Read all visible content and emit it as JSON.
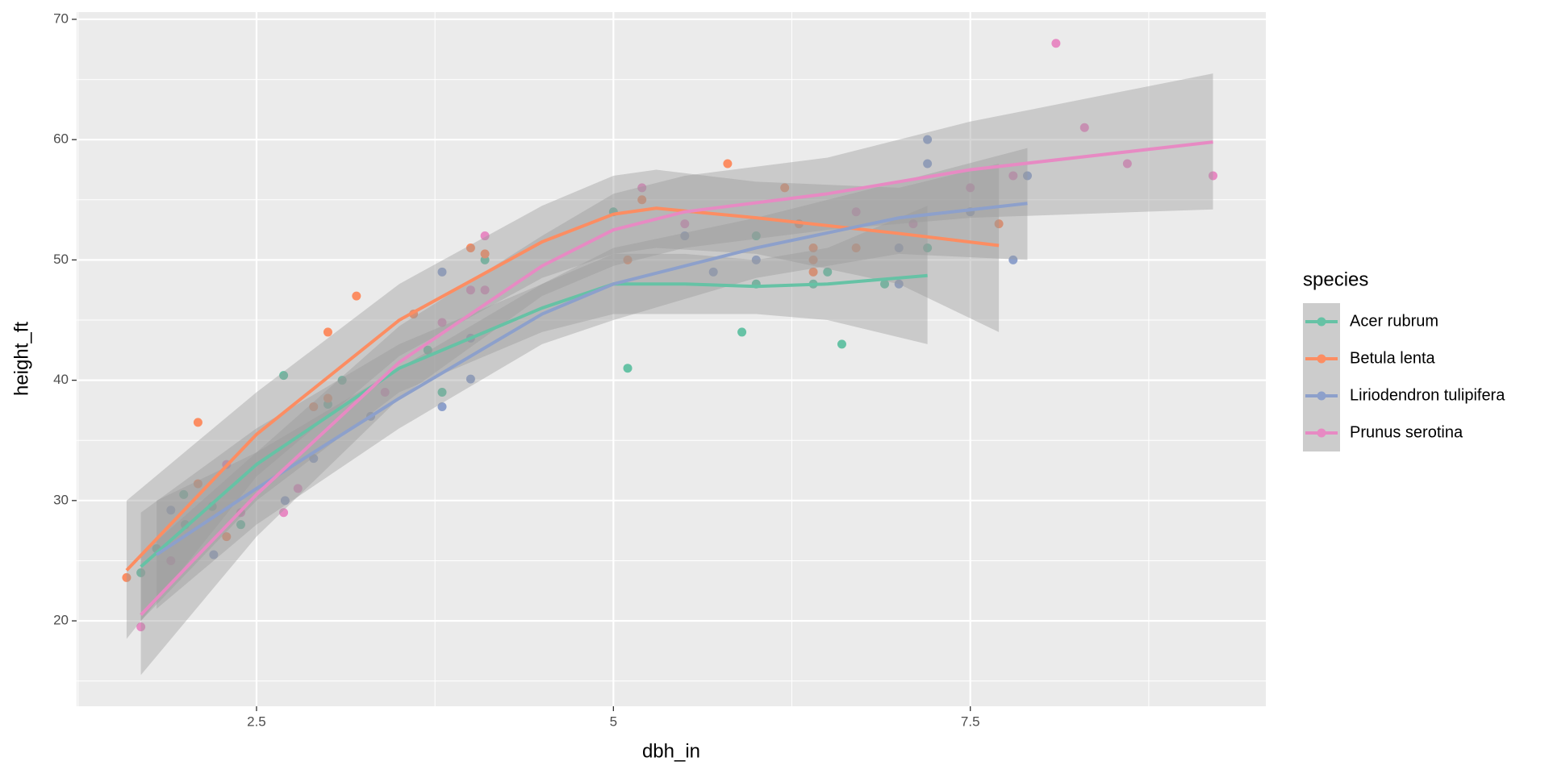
{
  "chart_data": {
    "type": "scatter",
    "x_label": "dbh_in",
    "y_label": "height_ft",
    "legend_title": "species",
    "legend_position": "right",
    "grid": true,
    "xlim": [
      1.24,
      9.57
    ],
    "ylim": [
      12.9,
      70.6
    ],
    "xticks": [
      2.5,
      5.0,
      7.5
    ],
    "yticks": [
      20,
      30,
      40,
      50,
      60,
      70
    ],
    "series": [
      {
        "name": "Acer rubrum",
        "color": "#66c2a5",
        "x": [
          1.69,
          1.8,
          1.99,
          2.0,
          2.19,
          2.39,
          2.69,
          3.0,
          3.1,
          3.7,
          3.8,
          4.1,
          5.0,
          5.1,
          5.9,
          6.0,
          6.0,
          6.4,
          6.5,
          6.6,
          6.9,
          7.2
        ],
        "values": [
          24,
          26,
          30.5,
          28,
          29.5,
          28,
          40.4,
          38,
          40,
          42.5,
          39,
          50,
          54,
          41,
          44,
          52,
          48,
          48,
          49,
          43,
          48,
          51
        ],
        "smooth": {
          "x": [
            1.69,
            2.5,
            3.5,
            4.5,
            5.0,
            5.5,
            6.0,
            6.5,
            7.2
          ],
          "values": [
            24.5,
            33,
            41,
            46,
            48,
            48,
            47.8,
            48,
            48.7
          ],
          "lower": [
            20,
            30,
            39,
            44,
            45.5,
            45.5,
            45.5,
            45,
            43
          ],
          "upper": [
            29,
            36,
            43,
            48,
            50.5,
            50.5,
            50,
            51,
            54.5
          ]
        }
      },
      {
        "name": "Betula lenta",
        "color": "#fc8d62",
        "x": [
          1.59,
          2.09,
          2.09,
          2.29,
          2.9,
          3.0,
          3.0,
          3.2,
          3.6,
          4.0,
          4.1,
          5.1,
          5.2,
          5.8,
          6.2,
          6.3,
          6.4,
          6.4,
          6.4,
          6.7,
          7.7
        ],
        "values": [
          23.6,
          36.5,
          31.4,
          27,
          37.8,
          38.5,
          44,
          47,
          45.5,
          51,
          50.5,
          50,
          55,
          58,
          56,
          53,
          51,
          49,
          50,
          51,
          53
        ],
        "smooth": {
          "x": [
            1.59,
            2.5,
            3.5,
            4.5,
            5.0,
            5.3,
            6.0,
            7.0,
            7.7
          ],
          "values": [
            24.2,
            35.5,
            45,
            51.5,
            53.8,
            54.3,
            53.5,
            52.2,
            51.2
          ],
          "lower": [
            18.5,
            32,
            42,
            48.5,
            50.5,
            51,
            50.5,
            48,
            44
          ],
          "upper": [
            30,
            39,
            48,
            54.5,
            57,
            57.5,
            56.5,
            56,
            58
          ]
        }
      },
      {
        "name": "Liriodendron tulipifera",
        "color": "#8da0cb",
        "x": [
          1.9,
          2.2,
          2.7,
          2.9,
          3.3,
          3.8,
          3.8,
          4.0,
          4.0,
          5.5,
          5.7,
          6.0,
          7.0,
          7.0,
          7.2,
          7.2,
          7.5,
          7.8,
          7.9
        ],
        "values": [
          29.2,
          25.5,
          30,
          33.5,
          37,
          49,
          37.8,
          43.5,
          40.1,
          52,
          49,
          50,
          51,
          48,
          60,
          58,
          54,
          50,
          57
        ],
        "smooth": {
          "x": [
            1.8,
            2.5,
            3.5,
            4.5,
            5.0,
            6.0,
            7.0,
            7.9
          ],
          "values": [
            25.5,
            31,
            38.5,
            45.5,
            48,
            51,
            53.5,
            54.7
          ],
          "lower": [
            21,
            28,
            36,
            43,
            45,
            48.5,
            50.5,
            50
          ],
          "upper": [
            30,
            34,
            41,
            48,
            51,
            53.5,
            56.5,
            59.3
          ]
        }
      },
      {
        "name": "Prunus serotina",
        "color": "#e78ac3",
        "x": [
          1.69,
          1.9,
          2.29,
          2.39,
          2.69,
          2.79,
          3.4,
          3.8,
          4.0,
          4.1,
          4.1,
          5.2,
          5.5,
          6.7,
          7.1,
          7.5,
          7.8,
          8.1,
          8.3,
          8.6,
          9.2
        ],
        "values": [
          19.5,
          25,
          33,
          29,
          29,
          31,
          39,
          44.8,
          47.5,
          52,
          47.5,
          56,
          53,
          54,
          53,
          56,
          57,
          68,
          61,
          58,
          57
        ],
        "smooth": {
          "x": [
            1.69,
            2.5,
            3.5,
            4.5,
            5.0,
            5.5,
            6.5,
            7.5,
            9.2
          ],
          "values": [
            20.5,
            30.5,
            41.5,
            49.5,
            52.5,
            54,
            55.5,
            57.5,
            59.8
          ],
          "lower": [
            15.5,
            27,
            38.5,
            47,
            49.5,
            51,
            52.5,
            53.5,
            54.2
          ],
          "upper": [
            25.5,
            34,
            44.5,
            52,
            55.5,
            57,
            58.5,
            61.5,
            65.5
          ]
        }
      }
    ]
  }
}
